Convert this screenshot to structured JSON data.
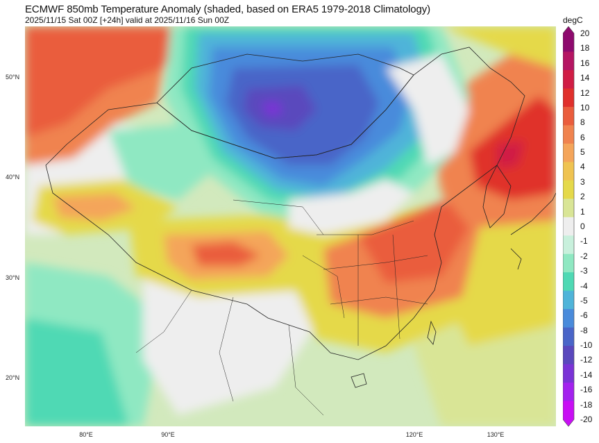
{
  "title": "ECMWF 850mb Temperature Anomaly (shaded, based on ERA5 1979-2018 Climatology)",
  "subtitle": "2025/11/15 Sat 00Z [+24h] valid at 2025/11/16 Sun 00Z",
  "units": "degC",
  "lat_labels": [
    "50°N",
    "40°N",
    "30°N",
    "20°N"
  ],
  "lon_labels": [
    "80°E",
    "90°E",
    "120°E",
    "130°E"
  ],
  "colorbar": {
    "labels": [
      "20",
      "18",
      "16",
      "14",
      "12",
      "10",
      "8",
      "6",
      "5",
      "4",
      "3",
      "2",
      "1",
      "0",
      "-1",
      "-2",
      "-3",
      "-4",
      "-5",
      "-6",
      "-8",
      "-10",
      "-12",
      "-14",
      "-16",
      "-18",
      "-20"
    ],
    "colors": [
      "#8e0a6e",
      "#b51563",
      "#d01d45",
      "#e0302c",
      "#ea5d3d",
      "#f0834f",
      "#f4a55a",
      "#efc351",
      "#e5d94a",
      "#d9e596",
      "#eeeeee",
      "#c8f0dc",
      "#8fe8c2",
      "#4fd9b4",
      "#4fb4d9",
      "#4a8bdb",
      "#4a65c8",
      "#5a48bd",
      "#7a33d6",
      "#a322ee",
      "#c80ff4"
    ]
  }
}
